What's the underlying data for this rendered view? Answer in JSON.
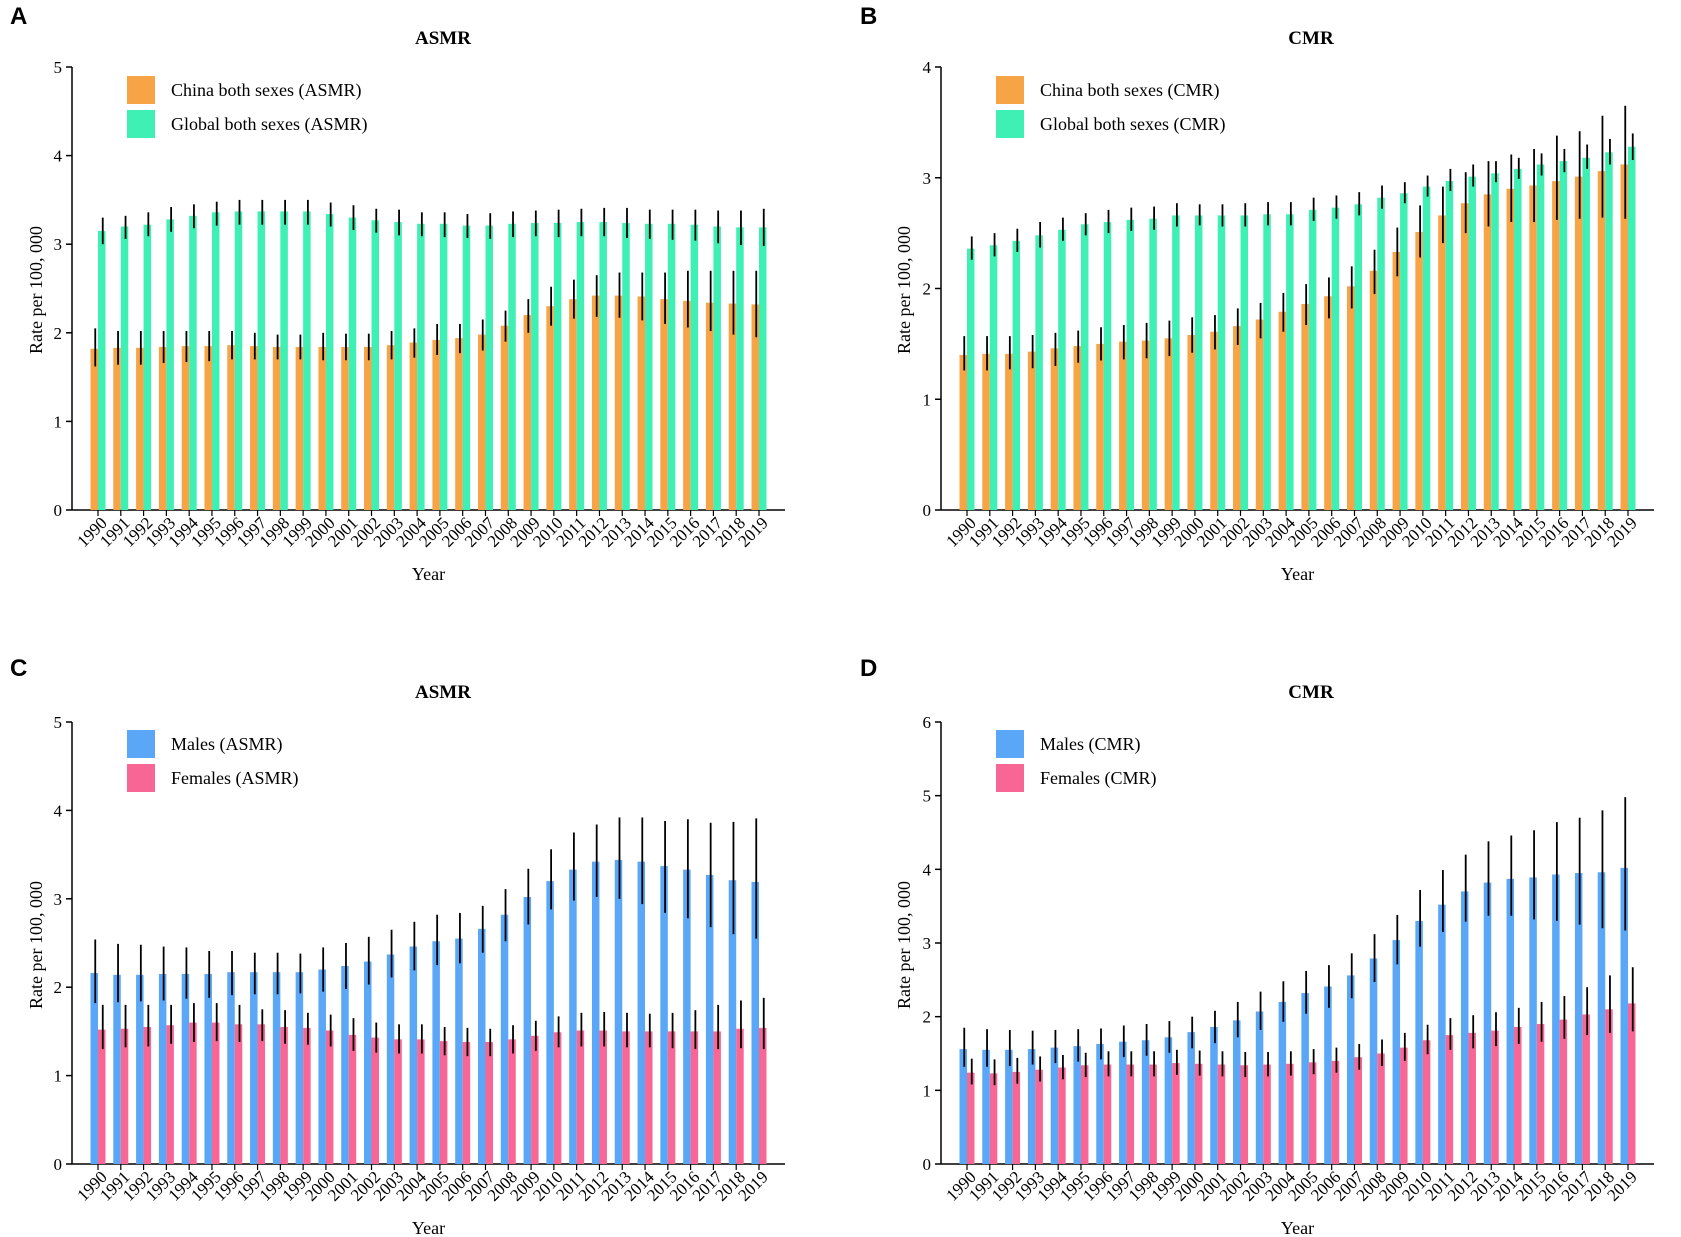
{
  "colors": {
    "china": "#f7a447",
    "global": "#3ff0b4",
    "males": "#5aa7f8",
    "females": "#f76695",
    "error": "#000000",
    "axis": "#000000"
  },
  "chart_data": [
    {
      "panel": "A",
      "type": "bar",
      "title": "ASMR",
      "xlabel": "Year",
      "ylabel": "Rate per 100, 000",
      "ylim": [
        0,
        5
      ],
      "yticks": [
        0,
        1,
        2,
        3,
        4,
        5
      ],
      "legend_position": "top-left",
      "categories": [
        "1990",
        "1991",
        "1992",
        "1993",
        "1994",
        "1995",
        "1996",
        "1997",
        "1998",
        "1999",
        "2000",
        "2001",
        "2002",
        "2003",
        "2004",
        "2005",
        "2006",
        "2007",
        "2008",
        "2009",
        "2010",
        "2011",
        "2012",
        "2013",
        "2014",
        "2015",
        "2016",
        "2017",
        "2018",
        "2019"
      ],
      "series": [
        {
          "name": "China both sexes (ASMR)",
          "color_key": "china",
          "values": [
            1.82,
            1.83,
            1.83,
            1.84,
            1.85,
            1.85,
            1.86,
            1.85,
            1.84,
            1.84,
            1.84,
            1.84,
            1.84,
            1.86,
            1.89,
            1.92,
            1.94,
            1.98,
            2.08,
            2.2,
            2.3,
            2.38,
            2.42,
            2.42,
            2.41,
            2.38,
            2.36,
            2.34,
            2.33,
            2.32
          ],
          "lower": [
            1.62,
            1.64,
            1.64,
            1.66,
            1.67,
            1.68,
            1.7,
            1.7,
            1.7,
            1.7,
            1.69,
            1.69,
            1.69,
            1.7,
            1.72,
            1.75,
            1.77,
            1.8,
            1.9,
            2.0,
            2.08,
            2.16,
            2.18,
            2.17,
            2.14,
            2.1,
            2.06,
            2.02,
            1.98,
            1.95
          ],
          "upper": [
            2.05,
            2.02,
            2.02,
            2.02,
            2.02,
            2.02,
            2.02,
            2.0,
            1.98,
            1.98,
            2.0,
            1.99,
            1.99,
            2.02,
            2.05,
            2.1,
            2.1,
            2.15,
            2.25,
            2.38,
            2.52,
            2.6,
            2.65,
            2.68,
            2.68,
            2.68,
            2.7,
            2.7,
            2.7,
            2.7
          ]
        },
        {
          "name": "Global both sexes (ASMR)",
          "color_key": "global",
          "values": [
            3.15,
            3.2,
            3.22,
            3.28,
            3.32,
            3.36,
            3.37,
            3.37,
            3.37,
            3.37,
            3.34,
            3.3,
            3.27,
            3.25,
            3.23,
            3.23,
            3.21,
            3.21,
            3.23,
            3.24,
            3.24,
            3.25,
            3.25,
            3.24,
            3.23,
            3.23,
            3.22,
            3.2,
            3.19,
            3.19
          ],
          "lower": [
            3.0,
            3.06,
            3.09,
            3.14,
            3.18,
            3.21,
            3.22,
            3.22,
            3.22,
            3.22,
            3.2,
            3.16,
            3.13,
            3.1,
            3.09,
            3.08,
            3.07,
            3.06,
            3.08,
            3.09,
            3.08,
            3.09,
            3.09,
            3.07,
            3.06,
            3.05,
            3.04,
            3.01,
            2.99,
            2.98
          ],
          "upper": [
            3.3,
            3.32,
            3.36,
            3.42,
            3.45,
            3.48,
            3.5,
            3.5,
            3.5,
            3.5,
            3.47,
            3.44,
            3.4,
            3.39,
            3.36,
            3.36,
            3.34,
            3.35,
            3.37,
            3.38,
            3.39,
            3.4,
            3.41,
            3.41,
            3.39,
            3.39,
            3.39,
            3.38,
            3.38,
            3.4
          ]
        }
      ]
    },
    {
      "panel": "B",
      "type": "bar",
      "title": "CMR",
      "xlabel": "Year",
      "ylabel": "Rate per 100, 000",
      "ylim": [
        0,
        4
      ],
      "yticks": [
        0,
        1,
        2,
        3,
        4
      ],
      "legend_position": "top-left",
      "categories": [
        "1990",
        "1991",
        "1992",
        "1993",
        "1994",
        "1995",
        "1996",
        "1997",
        "1998",
        "1999",
        "2000",
        "2001",
        "2002",
        "2003",
        "2004",
        "2005",
        "2006",
        "2007",
        "2008",
        "2009",
        "2010",
        "2011",
        "2012",
        "2013",
        "2014",
        "2015",
        "2016",
        "2017",
        "2018",
        "2019"
      ],
      "series": [
        {
          "name": "China both sexes (CMR)",
          "color_key": "china",
          "values": [
            1.4,
            1.41,
            1.41,
            1.43,
            1.46,
            1.48,
            1.5,
            1.52,
            1.53,
            1.55,
            1.58,
            1.61,
            1.66,
            1.72,
            1.79,
            1.86,
            1.93,
            2.02,
            2.16,
            2.33,
            2.51,
            2.66,
            2.77,
            2.85,
            2.9,
            2.93,
            2.97,
            3.01,
            3.06,
            3.12
          ],
          "lower": [
            1.26,
            1.26,
            1.27,
            1.28,
            1.3,
            1.33,
            1.35,
            1.36,
            1.37,
            1.39,
            1.42,
            1.45,
            1.49,
            1.55,
            1.61,
            1.67,
            1.73,
            1.82,
            1.95,
            2.11,
            2.28,
            2.41,
            2.5,
            2.56,
            2.6,
            2.6,
            2.62,
            2.63,
            2.64,
            2.63
          ],
          "upper": [
            1.57,
            1.57,
            1.57,
            1.58,
            1.6,
            1.62,
            1.65,
            1.67,
            1.69,
            1.71,
            1.74,
            1.76,
            1.82,
            1.87,
            1.96,
            2.04,
            2.1,
            2.2,
            2.35,
            2.55,
            2.75,
            2.92,
            3.05,
            3.15,
            3.21,
            3.26,
            3.38,
            3.42,
            3.56,
            3.65
          ]
        },
        {
          "name": "Global both sexes (CMR)",
          "color_key": "global",
          "values": [
            2.36,
            2.39,
            2.43,
            2.48,
            2.53,
            2.58,
            2.6,
            2.62,
            2.63,
            2.66,
            2.66,
            2.66,
            2.66,
            2.67,
            2.67,
            2.71,
            2.73,
            2.76,
            2.82,
            2.86,
            2.92,
            2.97,
            3.01,
            3.04,
            3.08,
            3.12,
            3.15,
            3.18,
            3.23,
            3.28
          ],
          "lower": [
            2.26,
            2.29,
            2.33,
            2.37,
            2.43,
            2.48,
            2.5,
            2.52,
            2.53,
            2.56,
            2.57,
            2.56,
            2.56,
            2.57,
            2.57,
            2.61,
            2.63,
            2.66,
            2.72,
            2.77,
            2.83,
            2.88,
            2.92,
            2.96,
            2.99,
            3.02,
            3.05,
            3.08,
            3.12,
            3.16
          ],
          "upper": [
            2.47,
            2.5,
            2.54,
            2.6,
            2.64,
            2.68,
            2.71,
            2.73,
            2.74,
            2.77,
            2.76,
            2.76,
            2.77,
            2.78,
            2.78,
            2.82,
            2.84,
            2.87,
            2.93,
            2.96,
            3.02,
            3.08,
            3.12,
            3.15,
            3.18,
            3.22,
            3.26,
            3.3,
            3.35,
            3.4
          ]
        }
      ]
    },
    {
      "panel": "C",
      "type": "bar",
      "title": "ASMR",
      "xlabel": "Year",
      "ylabel": "Rate per 100, 000",
      "ylim": [
        0,
        5
      ],
      "yticks": [
        0,
        1,
        2,
        3,
        4,
        5
      ],
      "legend_position": "top-left",
      "categories": [
        "1990",
        "1991",
        "1992",
        "1993",
        "1994",
        "1995",
        "1996",
        "1997",
        "1998",
        "1999",
        "2000",
        "2001",
        "2002",
        "2003",
        "2004",
        "2005",
        "2006",
        "2007",
        "2008",
        "2009",
        "2010",
        "2011",
        "2012",
        "2013",
        "2014",
        "2015",
        "2016",
        "2017",
        "2018",
        "2019"
      ],
      "series": [
        {
          "name": "Males (ASMR)",
          "color_key": "males",
          "values": [
            2.16,
            2.14,
            2.14,
            2.15,
            2.15,
            2.15,
            2.17,
            2.17,
            2.17,
            2.17,
            2.2,
            2.24,
            2.29,
            2.37,
            2.46,
            2.52,
            2.55,
            2.66,
            2.82,
            3.02,
            3.2,
            3.33,
            3.42,
            3.44,
            3.42,
            3.37,
            3.33,
            3.27,
            3.21,
            3.19
          ],
          "lower": [
            1.82,
            1.83,
            1.84,
            1.85,
            1.87,
            1.88,
            1.91,
            1.92,
            1.92,
            1.93,
            1.95,
            1.98,
            2.03,
            2.11,
            2.19,
            2.25,
            2.27,
            2.39,
            2.52,
            2.71,
            2.88,
            2.98,
            3.02,
            3.0,
            2.94,
            2.84,
            2.78,
            2.68,
            2.6,
            2.55
          ],
          "upper": [
            2.54,
            2.49,
            2.48,
            2.46,
            2.45,
            2.41,
            2.41,
            2.39,
            2.39,
            2.38,
            2.45,
            2.5,
            2.57,
            2.65,
            2.74,
            2.82,
            2.84,
            2.92,
            3.11,
            3.34,
            3.56,
            3.75,
            3.84,
            3.92,
            3.92,
            3.88,
            3.9,
            3.86,
            3.87,
            3.91
          ]
        },
        {
          "name": "Females (ASMR)",
          "color_key": "females",
          "values": [
            1.52,
            1.53,
            1.55,
            1.57,
            1.6,
            1.6,
            1.58,
            1.58,
            1.55,
            1.54,
            1.51,
            1.46,
            1.43,
            1.41,
            1.41,
            1.39,
            1.38,
            1.38,
            1.41,
            1.45,
            1.49,
            1.51,
            1.51,
            1.5,
            1.5,
            1.5,
            1.5,
            1.5,
            1.53,
            1.54
          ],
          "lower": [
            1.3,
            1.32,
            1.33,
            1.36,
            1.38,
            1.39,
            1.38,
            1.39,
            1.36,
            1.35,
            1.33,
            1.28,
            1.26,
            1.25,
            1.25,
            1.23,
            1.22,
            1.22,
            1.25,
            1.28,
            1.32,
            1.33,
            1.33,
            1.32,
            1.32,
            1.31,
            1.3,
            1.3,
            1.31,
            1.3
          ],
          "upper": [
            1.8,
            1.8,
            1.8,
            1.8,
            1.82,
            1.82,
            1.8,
            1.75,
            1.74,
            1.71,
            1.69,
            1.65,
            1.6,
            1.58,
            1.58,
            1.55,
            1.54,
            1.53,
            1.57,
            1.62,
            1.67,
            1.71,
            1.72,
            1.71,
            1.7,
            1.71,
            1.74,
            1.8,
            1.85,
            1.88
          ]
        }
      ]
    },
    {
      "panel": "D",
      "type": "bar",
      "title": "CMR",
      "xlabel": "Year",
      "ylabel": "Rate per 100, 000",
      "ylim": [
        0,
        6
      ],
      "yticks": [
        0,
        1,
        2,
        3,
        4,
        5,
        6
      ],
      "legend_position": "top-left",
      "categories": [
        "1990",
        "1991",
        "1992",
        "1993",
        "1994",
        "1995",
        "1996",
        "1997",
        "1998",
        "1999",
        "2000",
        "2001",
        "2002",
        "2003",
        "2004",
        "2005",
        "2006",
        "2007",
        "2008",
        "2009",
        "2010",
        "2011",
        "2012",
        "2013",
        "2014",
        "2015",
        "2016",
        "2017",
        "2018",
        "2019"
      ],
      "series": [
        {
          "name": "Males (CMR)",
          "color_key": "males",
          "values": [
            1.56,
            1.55,
            1.55,
            1.56,
            1.58,
            1.6,
            1.63,
            1.66,
            1.68,
            1.72,
            1.79,
            1.86,
            1.95,
            2.07,
            2.2,
            2.32,
            2.41,
            2.56,
            2.79,
            3.04,
            3.3,
            3.52,
            3.7,
            3.82,
            3.87,
            3.89,
            3.93,
            3.95,
            3.96,
            4.02
          ],
          "lower": [
            1.32,
            1.32,
            1.33,
            1.35,
            1.37,
            1.39,
            1.42,
            1.45,
            1.47,
            1.51,
            1.57,
            1.64,
            1.72,
            1.82,
            1.93,
            2.04,
            2.12,
            2.25,
            2.47,
            2.71,
            2.95,
            3.15,
            3.29,
            3.37,
            3.37,
            3.32,
            3.3,
            3.25,
            3.2,
            3.17
          ],
          "upper": [
            1.85,
            1.83,
            1.82,
            1.81,
            1.82,
            1.83,
            1.84,
            1.88,
            1.9,
            1.94,
            2.0,
            2.08,
            2.2,
            2.34,
            2.48,
            2.62,
            2.7,
            2.86,
            3.12,
            3.38,
            3.72,
            3.99,
            4.2,
            4.38,
            4.46,
            4.53,
            4.64,
            4.7,
            4.8,
            4.98
          ]
        },
        {
          "name": "Females (CMR)",
          "color_key": "females",
          "values": [
            1.24,
            1.23,
            1.25,
            1.28,
            1.31,
            1.34,
            1.35,
            1.35,
            1.35,
            1.37,
            1.36,
            1.35,
            1.34,
            1.35,
            1.36,
            1.38,
            1.4,
            1.45,
            1.5,
            1.58,
            1.68,
            1.75,
            1.78,
            1.81,
            1.86,
            1.9,
            1.96,
            2.03,
            2.1,
            2.18
          ],
          "lower": [
            1.08,
            1.07,
            1.09,
            1.12,
            1.15,
            1.18,
            1.19,
            1.19,
            1.19,
            1.21,
            1.2,
            1.19,
            1.18,
            1.19,
            1.2,
            1.22,
            1.24,
            1.28,
            1.33,
            1.4,
            1.49,
            1.55,
            1.57,
            1.6,
            1.63,
            1.66,
            1.7,
            1.75,
            1.78,
            1.8
          ],
          "upper": [
            1.43,
            1.42,
            1.44,
            1.46,
            1.48,
            1.51,
            1.53,
            1.53,
            1.53,
            1.55,
            1.54,
            1.53,
            1.52,
            1.52,
            1.53,
            1.56,
            1.58,
            1.63,
            1.69,
            1.78,
            1.89,
            1.98,
            2.02,
            2.06,
            2.12,
            2.2,
            2.28,
            2.4,
            2.56,
            2.67
          ]
        }
      ]
    }
  ]
}
